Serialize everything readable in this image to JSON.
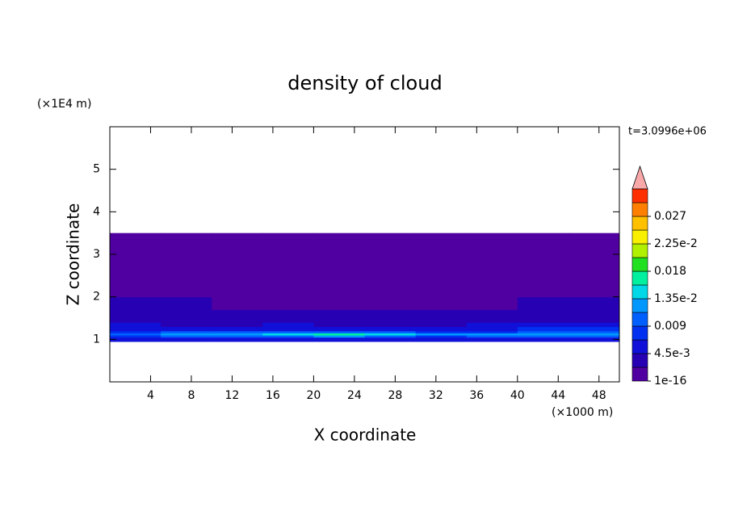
{
  "chart_data": {
    "type": "contour",
    "title": "density of cloud",
    "xlabel": "X coordinate",
    "ylabel": "Z coordinate",
    "xunit": "(×1000 m)",
    "yunit": "(×1E4 m)",
    "annotation": "t=3.0996e+06",
    "xlim": [
      0,
      50
    ],
    "ylim": [
      0,
      6
    ],
    "xticks": [
      4,
      8,
      12,
      16,
      20,
      24,
      28,
      32,
      36,
      40,
      44,
      48
    ],
    "yticks": [
      1,
      2,
      3,
      4,
      5
    ],
    "x_edges": [
      0,
      5,
      10,
      15,
      20,
      25,
      30,
      35,
      40,
      45,
      50
    ],
    "z_edges": [
      0.95,
      1.05,
      1.1,
      1.15,
      1.2,
      1.3,
      1.4,
      1.5,
      1.7,
      2.0,
      2.3,
      2.7,
      3.5
    ],
    "field": [
      [
        0.005,
        0.005,
        0.005,
        0.005,
        0.005,
        0.005,
        0.005,
        0.005,
        0.005,
        0.005
      ],
      [
        0.008,
        0.009,
        0.01,
        0.011,
        0.012,
        0.01,
        0.008,
        0.009,
        0.01,
        0.009
      ],
      [
        0.011,
        0.012,
        0.013,
        0.015,
        0.017,
        0.014,
        0.012,
        0.012,
        0.013,
        0.012
      ],
      [
        0.008,
        0.009,
        0.009,
        0.01,
        0.01,
        0.009,
        0.008,
        0.008,
        0.009,
        0.009
      ],
      [
        0.006,
        0.006,
        0.005,
        0.006,
        0.006,
        0.006,
        0.005,
        0.006,
        0.007,
        0.007
      ],
      [
        0.005,
        0.004,
        0.004,
        0.005,
        0.004,
        0.004,
        0.004,
        0.005,
        0.005,
        0.005
      ],
      [
        0.004,
        0.004,
        0.003,
        0.003,
        0.003,
        0.003,
        0.003,
        0.004,
        0.004,
        0.004
      ],
      [
        0.0035,
        0.003,
        0.003,
        0.0025,
        0.0025,
        0.003,
        0.003,
        0.003,
        0.0035,
        0.0035
      ],
      [
        0.0025,
        0.0025,
        0.002,
        0.002,
        0.002,
        0.002,
        0.002,
        0.002,
        0.0025,
        0.0025
      ],
      [
        0.0015,
        0.0015,
        0.0015,
        0.0012,
        0.0012,
        0.0015,
        0.0015,
        0.0012,
        0.0015,
        0.0015
      ],
      [
        0.0008,
        0.0008,
        0.0008,
        0.0008,
        0.0008,
        0.0008,
        0.0008,
        0.0008,
        0.0008,
        0.0008
      ],
      [
        0.0002,
        0.0002,
        0.0002,
        0.0002,
        0.0002,
        0.0002,
        0.0002,
        0.0002,
        0.0002,
        0.0002
      ]
    ],
    "levels": [
      1e-16,
      0.00225,
      0.0045,
      0.00675,
      0.009,
      0.01125,
      0.0135,
      0.01575,
      0.018,
      0.02025,
      0.0225,
      0.02475,
      0.027,
      0.02925
    ],
    "colors": [
      "#5000a0",
      "#2800b4",
      "#1010d8",
      "#0030f0",
      "#0060ff",
      "#0098ff",
      "#00d8e8",
      "#00f0a0",
      "#20e020",
      "#b0f000",
      "#f8f000",
      "#ffc000",
      "#ff8000",
      "#ff3000"
    ],
    "extend_color": "#f8a8a8",
    "colorbar_ticks": [
      1e-16,
      {
        "value": 0.0045,
        "label": "4.5e-3"
      },
      0.009,
      {
        "value": 0.0135,
        "label": "1.35e-2"
      },
      0.018,
      {
        "value": 0.0225,
        "label": "2.25e-2"
      },
      0.027
    ]
  }
}
